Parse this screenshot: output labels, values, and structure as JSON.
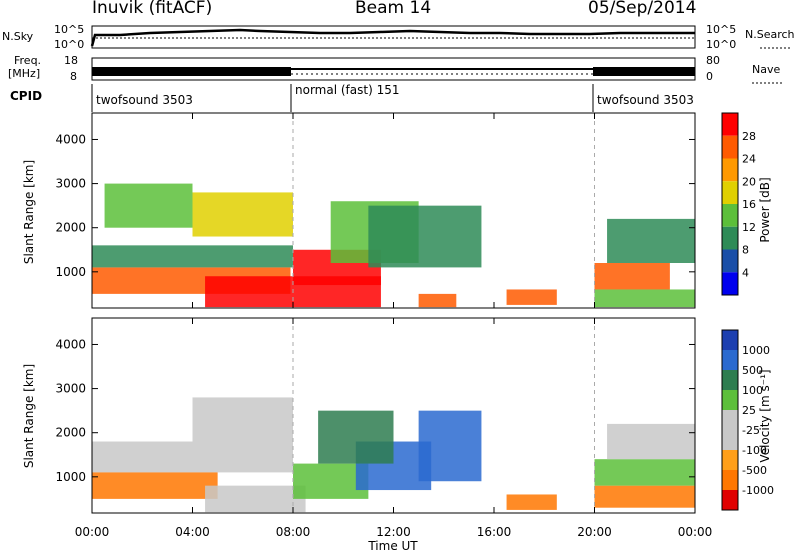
{
  "header": {
    "station": "Inuvik (fitACF)",
    "beam": "Beam 14",
    "date": "05/Sep/2014"
  },
  "top_panels": {
    "nsky_label": "N.Sky",
    "nsky_ticks": [
      "10^5",
      "10^0"
    ],
    "nsearch_label": "N.Search",
    "nsearch_ticks": [
      "10^5",
      "10^0"
    ],
    "freq_label_1": "Freq.",
    "freq_label_2": "[MHz]",
    "freq_ticks": [
      "18",
      "8"
    ],
    "nave_label": "Nave",
    "nave_ticks": [
      "80",
      "0"
    ],
    "cpid_label": "CPID",
    "cpid_segments": [
      {
        "label": "twofsound 3503",
        "start_hour": 0,
        "end_hour": 8
      },
      {
        "label": "normal (fast) 151",
        "start_hour": 8,
        "end_hour": 20
      },
      {
        "label": "twofsound 3503",
        "start_hour": 20,
        "end_hour": 24
      }
    ]
  },
  "power_panel": {
    "ylabel": "Slant Range [km]",
    "yticks": [
      "4000",
      "3000",
      "2000",
      "1000"
    ],
    "colorbar_label": "Power [dB]",
    "colorbar_ticks": [
      "28",
      "24",
      "20",
      "16",
      "12",
      "8",
      "4"
    ],
    "colors": [
      "#0000ee",
      "#1a4fa8",
      "#2e8b57",
      "#5cbf3a",
      "#e0d000",
      "#ff9900",
      "#ff5a00",
      "#ff0000"
    ]
  },
  "velocity_panel": {
    "ylabel": "Slant Range [km]",
    "yticks": [
      "4000",
      "3000",
      "2000",
      "1000"
    ],
    "colorbar_label": "Velocity [m s⁻¹]",
    "colorbar_ticks": [
      "1000",
      "500",
      "100",
      "25",
      "-25",
      "-100",
      "-500",
      "-1000"
    ],
    "colors": [
      "#1c3fb0",
      "#2a6ad0",
      "#2e7d50",
      "#5cbf3a",
      "#c8c8c8",
      "#c8c8c8",
      "#ff9f1a",
      "#ff7700",
      "#e00000"
    ]
  },
  "xaxis": {
    "label": "Time UT",
    "ticks": [
      "00:00",
      "04:00",
      "08:00",
      "12:00",
      "16:00",
      "20:00",
      "00:00"
    ]
  },
  "chart_data": [
    {
      "type": "heatmap",
      "title": "Inuvik (fitACF) Beam 14 05/Sep/2014",
      "subtitle": "Power",
      "xlabel": "Time UT",
      "ylabel": "Slant Range [km]",
      "xlim": [
        0,
        24
      ],
      "ylim": [
        180,
        4600
      ],
      "colorbar": {
        "label": "Power [dB]",
        "range": [
          0,
          32
        ]
      },
      "patches": [
        {
          "t0": 0.0,
          "t1": 7.9,
          "r0": 500,
          "r1": 1100,
          "v": 24
        },
        {
          "t0": 0.0,
          "t1": 8.0,
          "r0": 1100,
          "r1": 1600,
          "v": 8
        },
        {
          "t0": 4.5,
          "t1": 11.5,
          "r0": 200,
          "r1": 900,
          "v": 28
        },
        {
          "t0": 8.0,
          "t1": 11.5,
          "r0": 700,
          "r1": 1500,
          "v": 28
        },
        {
          "t0": 9.5,
          "t1": 13.0,
          "r0": 1200,
          "r1": 2600,
          "v": 12
        },
        {
          "t0": 11.0,
          "t1": 15.5,
          "r0": 1100,
          "r1": 2500,
          "v": 8
        },
        {
          "t0": 4.0,
          "t1": 8.0,
          "r0": 1800,
          "r1": 2800,
          "v": 16
        },
        {
          "t0": 0.5,
          "t1": 4.0,
          "r0": 2000,
          "r1": 3000,
          "v": 12
        },
        {
          "t0": 13.0,
          "t1": 14.5,
          "r0": 200,
          "r1": 500,
          "v": 24
        },
        {
          "t0": 16.5,
          "t1": 18.5,
          "r0": 250,
          "r1": 600,
          "v": 24
        },
        {
          "t0": 20.0,
          "t1": 23.0,
          "r0": 600,
          "r1": 1200,
          "v": 26
        },
        {
          "t0": 20.0,
          "t1": 24.0,
          "r0": 200,
          "r1": 600,
          "v": 12
        },
        {
          "t0": 20.5,
          "t1": 24.0,
          "r0": 1200,
          "r1": 2200,
          "v": 8
        }
      ]
    },
    {
      "type": "heatmap",
      "title": "Inuvik (fitACF) Beam 14 05/Sep/2014",
      "subtitle": "Velocity",
      "xlabel": "Time UT",
      "ylabel": "Slant Range [km]",
      "xlim": [
        0,
        24
      ],
      "ylim": [
        180,
        4600
      ],
      "colorbar": {
        "label": "Velocity [m s⁻¹]",
        "range": [
          -1000,
          1000
        ]
      },
      "patches": [
        {
          "t0": 0.0,
          "t1": 8.0,
          "r0": 1100,
          "r1": 1800,
          "v": 0
        },
        {
          "t0": 0.0,
          "t1": 5.0,
          "r0": 500,
          "r1": 1100,
          "v": -300
        },
        {
          "t0": 4.5,
          "t1": 8.5,
          "r0": 200,
          "r1": 800,
          "v": 0
        },
        {
          "t0": 4.0,
          "t1": 8.0,
          "r0": 1800,
          "r1": 2800,
          "v": 0
        },
        {
          "t0": 8.0,
          "t1": 11.0,
          "r0": 500,
          "r1": 1300,
          "v": 60
        },
        {
          "t0": 10.5,
          "t1": 13.5,
          "r0": 700,
          "r1": 1800,
          "v": 600
        },
        {
          "t0": 9.0,
          "t1": 12.0,
          "r0": 1300,
          "r1": 2500,
          "v": 100
        },
        {
          "t0": 13.0,
          "t1": 15.5,
          "r0": 900,
          "r1": 2500,
          "v": 600
        },
        {
          "t0": 16.5,
          "t1": 18.5,
          "r0": 250,
          "r1": 600,
          "v": -300
        },
        {
          "t0": 20.0,
          "t1": 24.0,
          "r0": 300,
          "r1": 800,
          "v": -200
        },
        {
          "t0": 20.0,
          "t1": 24.0,
          "r0": 800,
          "r1": 1400,
          "v": 40
        },
        {
          "t0": 20.5,
          "t1": 24.0,
          "r0": 1400,
          "r1": 2200,
          "v": 0
        }
      ]
    }
  ]
}
